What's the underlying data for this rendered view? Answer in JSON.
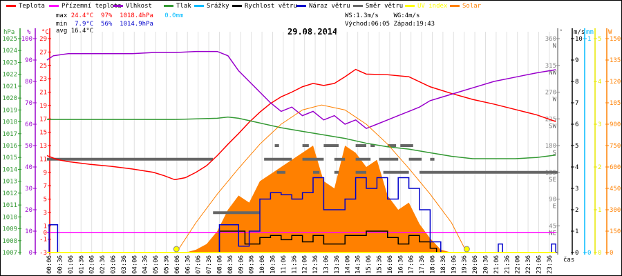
{
  "legend": [
    {
      "label": "Teplota",
      "color": "#ff0000"
    },
    {
      "label": "Přízemní teplota",
      "color": "#ff00ff"
    },
    {
      "label": "Vlhkost",
      "color": "#9900cc"
    },
    {
      "label": "Tlak",
      "color": "#339933"
    },
    {
      "label": "Srážky",
      "color": "#00bbff"
    },
    {
      "label": "Rychlost větru",
      "color": "#000000"
    },
    {
      "label": "Náraz větru",
      "color": "#0000cc"
    },
    {
      "label": "Směr větru",
      "color": "#666666"
    },
    {
      "label": "UV index",
      "color": "#ffff00"
    },
    {
      "label": "Solar",
      "color": "#ff8000"
    }
  ],
  "stats": {
    "max_label": "max",
    "max_temp": "24.4°C",
    "max_hum": "97%",
    "max_press": "1018.4hPa",
    "rain": "0.0mm",
    "min_label": "min",
    "min_temp": "7.9°C",
    "min_hum": "56%",
    "min_press": "1014.9hPa",
    "avg_label": "avg",
    "avg_temp": "16.4°C",
    "ws": "WS:1.3m/s",
    "wg": "WG:4m/s",
    "sunrise": "Východ:06:05",
    "sunset": "Západ:19:43"
  },
  "chart_data": {
    "type": "line",
    "title": "29.08.2014",
    "xlabel": "čas",
    "x_ticks": [
      "00:06",
      "00:36",
      "01:06",
      "01:36",
      "02:06",
      "02:36",
      "03:06",
      "03:36",
      "04:06",
      "04:36",
      "05:06",
      "05:36",
      "06:06",
      "06:36",
      "07:06",
      "07:36",
      "08:06",
      "08:36",
      "09:06",
      "09:36",
      "10:06",
      "10:36",
      "11:06",
      "11:36",
      "12:06",
      "12:36",
      "13:06",
      "13:36",
      "14:06",
      "14:36",
      "15:06",
      "15:36",
      "16:06",
      "16:36",
      "17:06",
      "17:36",
      "18:06",
      "18:36",
      "19:06",
      "19:36",
      "20:06",
      "20:36",
      "21:06",
      "21:36",
      "22:06",
      "22:36",
      "23:06",
      "23:36"
    ],
    "axes": {
      "hpa": {
        "unit": "hPa",
        "range": [
          1007,
          1025
        ],
        "ticks": [
          "1007",
          "1008",
          "1009",
          "1010",
          "1011",
          "1012",
          "1013",
          "1014",
          "1015",
          "1016",
          "1017",
          "1018",
          "1019",
          "1020",
          "1021",
          "1022",
          "1023",
          "1024",
          "1025"
        ]
      },
      "pct": {
        "unit": "%",
        "range": [
          0,
          100
        ],
        "ticks": [
          "0",
          "10",
          "20",
          "30",
          "40",
          "50",
          "60",
          "70",
          "80",
          "90",
          "100"
        ]
      },
      "temp": {
        "unit": "°C",
        "range": [
          -3,
          29
        ],
        "ticks": [
          "-3",
          "-1",
          "0",
          "1",
          "3",
          "5",
          "7",
          "9",
          "11",
          "13",
          "15",
          "17",
          "19",
          "21",
          "23",
          "25",
          "27",
          "29"
        ]
      },
      "dir": {
        "unit": "°",
        "range": [
          0,
          360
        ],
        "ticks": [
          [
            "45",
            "NE"
          ],
          [
            "90",
            "E"
          ],
          [
            "135",
            "SE"
          ],
          [
            "180",
            "S"
          ],
          [
            "225",
            "SW"
          ],
          [
            "270",
            "W"
          ],
          [
            "315",
            "NW"
          ],
          [
            "360",
            "N"
          ]
        ]
      },
      "wind": {
        "unit": "m/s",
        "range": [
          0,
          10
        ],
        "ticks": [
          "0",
          "1",
          "2",
          "3",
          "4",
          "5",
          "6",
          "7",
          "8",
          "9",
          "10"
        ]
      },
      "rain": {
        "unit": "mm",
        "range": [
          0,
          1
        ],
        "ticks": [
          "0",
          "1"
        ]
      },
      "uv": {
        "unit": "",
        "range": [
          0,
          5
        ],
        "ticks": [
          "0",
          "1",
          "2",
          "3",
          "4",
          "5"
        ]
      },
      "solar": {
        "unit": "W",
        "range": [
          0,
          1500
        ],
        "ticks": [
          "0",
          "150",
          "300",
          "450",
          "600",
          "750",
          "900",
          "1050",
          "1200",
          "1350",
          "1500"
        ]
      }
    },
    "series": [
      {
        "name": "Teplota",
        "axis": "temp",
        "color": "#ff0000",
        "x": [
          0,
          0.5,
          1,
          2,
          3,
          4,
          5,
          5.5,
          6,
          6.5,
          7,
          7.5,
          8,
          8.5,
          9,
          9.5,
          10,
          10.5,
          11,
          11.5,
          12,
          12.5,
          13,
          13.5,
          14,
          14.5,
          15,
          16,
          17,
          18,
          19,
          20,
          21,
          22,
          23,
          23.9
        ],
        "y": [
          11.5,
          10.9,
          10.6,
          10.2,
          9.9,
          9.5,
          9.0,
          8.5,
          7.9,
          8.2,
          9.0,
          10.0,
          11.5,
          13.2,
          14.8,
          16.5,
          18.0,
          19.3,
          20.3,
          21.0,
          21.8,
          22.3,
          22.0,
          22.3,
          23.3,
          24.4,
          23.7,
          23.6,
          23.3,
          21.8,
          20.8,
          19.9,
          19.2,
          18.4,
          17.6,
          16.6
        ]
      },
      {
        "name": "Přízemní teplota",
        "axis": "temp",
        "color": "#ff00ff",
        "x": [
          0,
          23.9
        ],
        "y": [
          0,
          0
        ]
      },
      {
        "name": "Vlhkost",
        "axis": "pct",
        "color": "#9900cc",
        "x": [
          0,
          0.3,
          1,
          2,
          3,
          4,
          5,
          6,
          7,
          8,
          8.5,
          9,
          9.5,
          10,
          10.5,
          11,
          11.5,
          12,
          12.5,
          13,
          13.5,
          14,
          14.5,
          15,
          15.5,
          16,
          16.5,
          17,
          17.5,
          18,
          19,
          20,
          21,
          22,
          23,
          23.9
        ],
        "y": [
          90,
          92,
          93,
          93,
          93,
          93,
          93.5,
          93.5,
          94,
          94,
          92,
          85,
          80,
          75,
          70,
          66,
          68,
          64,
          66,
          62,
          64,
          60,
          62,
          58,
          60,
          62,
          64,
          66,
          68,
          71,
          74,
          77,
          80,
          82,
          84,
          85.5
        ]
      },
      {
        "name": "Tlak",
        "axis": "hpa",
        "color": "#339933",
        "x": [
          0,
          2,
          4,
          6,
          8,
          8.5,
          9,
          10,
          11,
          12,
          13,
          14,
          15,
          16,
          17,
          18,
          19,
          20,
          21,
          22,
          23,
          23.9
        ],
        "y": [
          1018.2,
          1018.2,
          1018.2,
          1018.2,
          1018.3,
          1018.4,
          1018.3,
          1017.9,
          1017.5,
          1017.2,
          1016.9,
          1016.6,
          1016.2,
          1015.9,
          1015.7,
          1015.4,
          1015.1,
          1014.9,
          1014.9,
          1014.9,
          1015.0,
          1015.2
        ]
      },
      {
        "name": "Rychlost větru",
        "axis": "wind",
        "color": "#000000",
        "x": [
          0,
          8,
          8.1,
          9,
          9.3,
          10,
          10.5,
          11,
          11.5,
          12,
          12.5,
          13,
          13.5,
          14,
          14.5,
          15,
          15.5,
          16,
          16.5,
          17,
          17.5,
          18,
          18.3,
          23.9
        ],
        "y": [
          0,
          0,
          1,
          1,
          0.4,
          0.7,
          0.8,
          0.6,
          0.8,
          0.5,
          0.8,
          0.4,
          0.4,
          0.8,
          0.8,
          1,
          1,
          0.7,
          0.4,
          0.8,
          0.5,
          0.2,
          0,
          0
        ]
      },
      {
        "name": "Náraz větru",
        "axis": "wind",
        "color": "#0000cc",
        "x": [
          0,
          0.1,
          0.4,
          0.5,
          8,
          8.1,
          8.6,
          9,
          9.5,
          10,
          10.5,
          11,
          11.5,
          12,
          12.5,
          13,
          13.5,
          14,
          14.5,
          15,
          15.5,
          16,
          16.5,
          17,
          17.5,
          18,
          18.5,
          21,
          21.2,
          21.4,
          23.5,
          23.7,
          23.9
        ],
        "y": [
          0,
          1.3,
          1.3,
          0,
          0,
          1.3,
          1.3,
          0.3,
          1,
          2.5,
          2.8,
          2.7,
          2.5,
          2.8,
          3.5,
          2,
          2,
          2.5,
          3.5,
          3,
          3.5,
          2.5,
          3.5,
          3,
          2,
          0.5,
          0,
          0,
          0.4,
          0,
          0,
          0.4,
          0
        ]
      },
      {
        "name": "Solar",
        "axis": "solar",
        "color": "#ff8000",
        "x": [
          0,
          6.5,
          7,
          7.5,
          8,
          8.5,
          9,
          9.5,
          10,
          10.5,
          11,
          11.5,
          12,
          12.5,
          13,
          13.5,
          14,
          14.5,
          15,
          15.5,
          16,
          16.5,
          17,
          17.5,
          18,
          18.5,
          19,
          23.9
        ],
        "y": [
          0,
          0,
          20,
          60,
          150,
          300,
          400,
          350,
          500,
          550,
          600,
          650,
          700,
          750,
          500,
          450,
          750,
          700,
          600,
          650,
          400,
          300,
          350,
          200,
          100,
          20,
          0,
          0
        ]
      },
      {
        "name": "Solar teoretický",
        "axis": "solar",
        "color": "#ff8000",
        "x": [
          6.08,
          7,
          8,
          9,
          10,
          11,
          12,
          12.9,
          14,
          15,
          16,
          17,
          18,
          19,
          19.72
        ],
        "y": [
          0,
          210,
          410,
          590,
          760,
          900,
          1000,
          1035,
          1000,
          900,
          760,
          590,
          410,
          210,
          0
        ]
      }
    ],
    "wind_direction_segments": [
      [
        0,
        7.8,
        157
      ],
      [
        7.8,
        10,
        67
      ],
      [
        10.2,
        11.5,
        157
      ],
      [
        10.7,
        10.9,
        180
      ],
      [
        10.8,
        11.2,
        135
      ],
      [
        12,
        12.3,
        180
      ],
      [
        12,
        13,
        157
      ],
      [
        12.5,
        12.8,
        135
      ],
      [
        13,
        13.7,
        180
      ],
      [
        13.5,
        14,
        157
      ],
      [
        13.5,
        13.7,
        135
      ],
      [
        14.5,
        15,
        180
      ],
      [
        14.5,
        15.2,
        157
      ],
      [
        14.5,
        15,
        135
      ],
      [
        15.2,
        15.4,
        180
      ],
      [
        15.6,
        16.5,
        157
      ],
      [
        15.8,
        17,
        135
      ],
      [
        16,
        16.4,
        180
      ],
      [
        16.6,
        17.2,
        180
      ],
      [
        17,
        17.6,
        157
      ],
      [
        17.5,
        24,
        135
      ],
      [
        18,
        18.2,
        157
      ]
    ],
    "uv": {
      "x": [
        0,
        23.9
      ],
      "y": [
        0,
        0
      ]
    },
    "sun_markers": [
      6.08,
      19.72
    ]
  }
}
